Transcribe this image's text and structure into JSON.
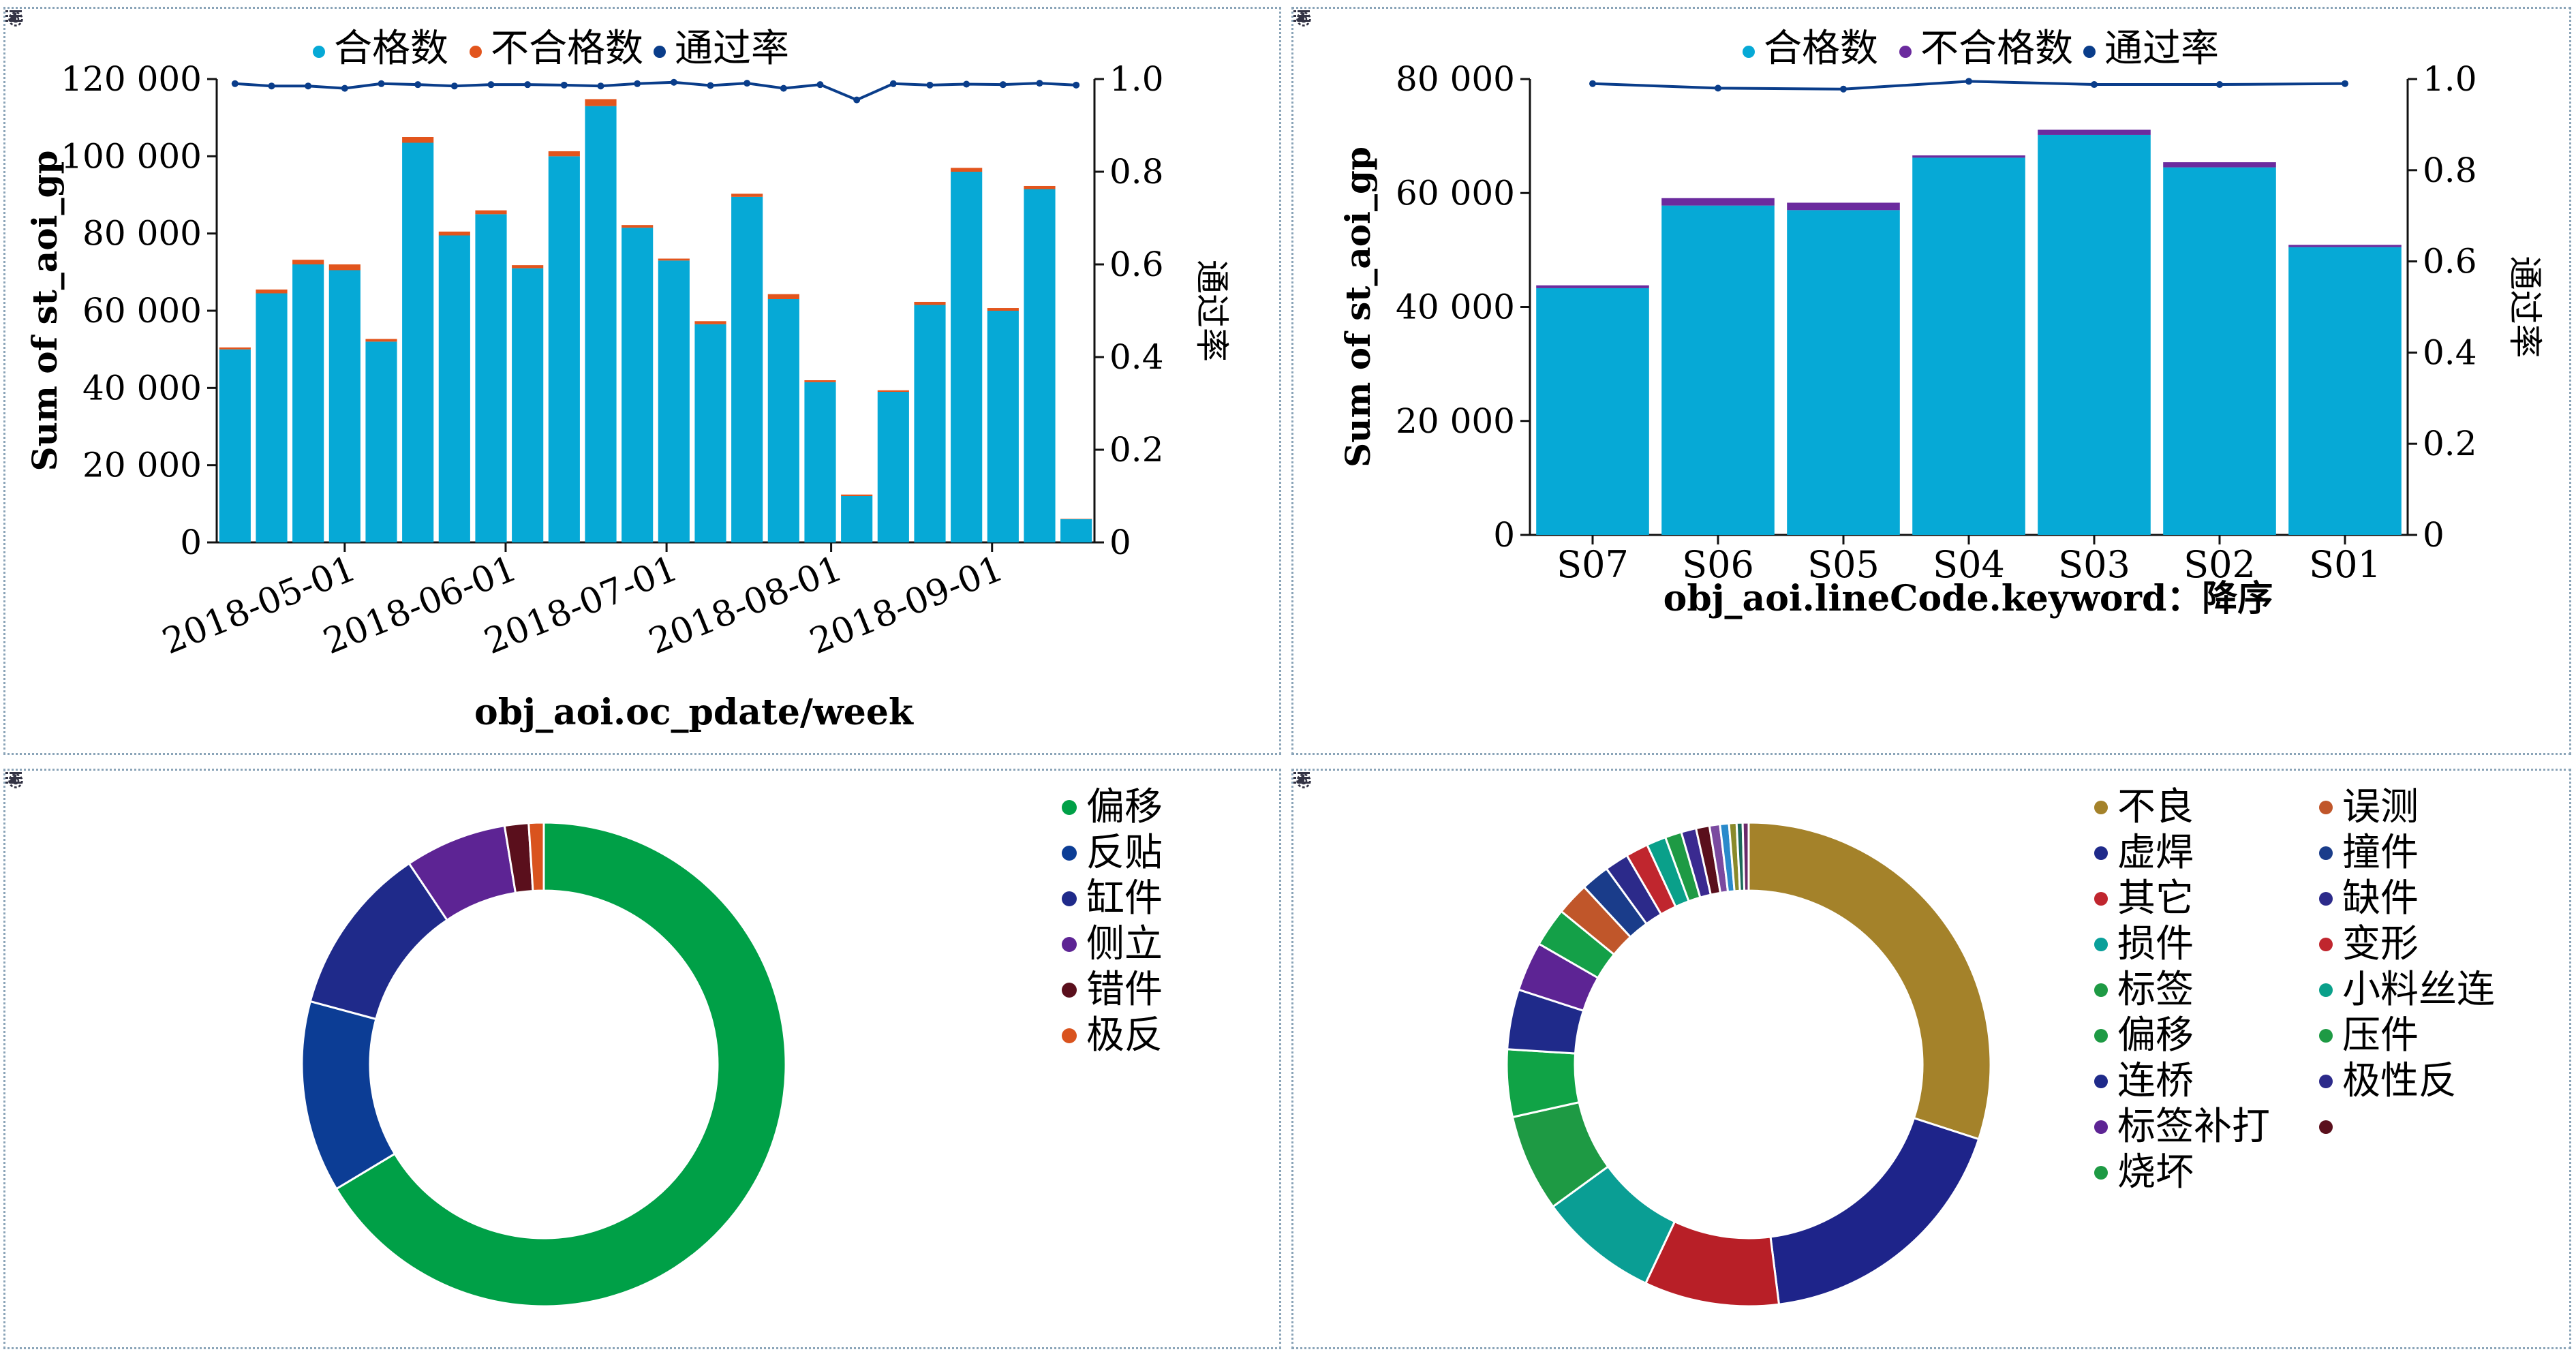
{
  "colors": {
    "pass": "#06a9d6",
    "fail_1": "#e2551d",
    "fail_2": "#6b2b9e",
    "rate": "#0a3d8a",
    "axis": "#111111"
  },
  "icons": {
    "settings": "gear-icon",
    "menu": "list-menu-icon",
    "resize": "resize-corner-icon"
  },
  "chart_data": [
    {
      "type": "bar",
      "stacked": true,
      "legend": {
        "position": "top",
        "entries": [
          "合格数",
          "不合格数",
          "通过率"
        ]
      },
      "xlabel": "obj_aoi.oc_pdate/week",
      "ylabel": "Sum of st_aoi_gp",
      "y2label": "通过率",
      "ylim": [
        0,
        120000
      ],
      "y2lim": [
        0,
        1.0
      ],
      "yticks": [
        "0",
        "20 000",
        "40 000",
        "60 000",
        "80 000",
        "100 000",
        "120 000"
      ],
      "y2ticks": [
        "0",
        "0.2",
        "0.4",
        "0.6",
        "0.8",
        "1.0"
      ],
      "xticks": [
        {
          "label": "2018-05-01",
          "index": 3.5
        },
        {
          "label": "2018-06-01",
          "index": 7.9
        },
        {
          "label": "2018-07-01",
          "index": 12.3
        },
        {
          "label": "2018-08-01",
          "index": 16.8
        },
        {
          "label": "2018-09-01",
          "index": 21.2
        }
      ],
      "series": [
        {
          "name": "合格数",
          "values": [
            50000,
            64500,
            72000,
            70500,
            52000,
            103500,
            79500,
            85000,
            71000,
            100000,
            113000,
            81500,
            73000,
            56500,
            89500,
            63000,
            41500,
            12000,
            39000,
            61500,
            96000,
            60000,
            91500,
            6000
          ]
        },
        {
          "name": "不合格数",
          "values": [
            500,
            1000,
            1200,
            1500,
            700,
            1500,
            1000,
            1000,
            800,
            1300,
            1800,
            700,
            500,
            800,
            800,
            1300,
            500,
            400,
            400,
            800,
            1000,
            700,
            800,
            100
          ]
        },
        {
          "name": "通过率",
          "values": [
            0.99,
            0.985,
            0.985,
            0.98,
            0.99,
            0.988,
            0.985,
            0.988,
            0.988,
            0.987,
            0.985,
            0.99,
            0.993,
            0.986,
            0.991,
            0.98,
            0.988,
            0.955,
            0.99,
            0.987,
            0.989,
            0.988,
            0.991,
            0.987
          ]
        }
      ]
    },
    {
      "type": "bar",
      "stacked": true,
      "legend": {
        "position": "top",
        "entries": [
          "合格数",
          "不合格数",
          "通过率"
        ]
      },
      "xlabel": "obj_aoi.lineCode.keyword：降序",
      "ylabel": "Sum of st_aoi_gp",
      "y2label": "通过率",
      "ylim": [
        0,
        80000
      ],
      "y2lim": [
        0,
        1.0
      ],
      "yticks": [
        "0",
        "20 000",
        "40 000",
        "60 000",
        "80 000"
      ],
      "y2ticks": [
        "0",
        "0.2",
        "0.4",
        "0.6",
        "0.8",
        "1.0"
      ],
      "categories": [
        "S07",
        "S06",
        "S05",
        "S04",
        "S03",
        "S02",
        "S01"
      ],
      "series": [
        {
          "name": "合格数",
          "values": [
            43300,
            57800,
            57000,
            66200,
            70200,
            64500,
            50500
          ]
        },
        {
          "name": "不合格数",
          "values": [
            500,
            1300,
            1300,
            400,
            900,
            900,
            400
          ]
        },
        {
          "name": "通过率",
          "values": [
            0.99,
            0.98,
            0.978,
            0.995,
            0.988,
            0.988,
            0.99
          ]
        }
      ]
    },
    {
      "type": "pie",
      "donut": true,
      "legend": {
        "position": "top-right",
        "entries": [
          "偏移",
          "反贴",
          "缸件",
          "侧立",
          "错件",
          "极反"
        ]
      },
      "slices": [
        {
          "label": "偏移",
          "value": 66.4,
          "color": "#00a047"
        },
        {
          "label": "反贴",
          "value": 12.8,
          "color": "#0c3d95"
        },
        {
          "label": "缸件",
          "value": 11.4,
          "color": "#1f2a8a"
        },
        {
          "label": "侧立",
          "value": 6.8,
          "color": "#5d2494"
        },
        {
          "label": "错件",
          "value": 1.6,
          "color": "#5a0f1c"
        },
        {
          "label": "极反",
          "value": 1.0,
          "color": "#d9531e"
        }
      ]
    },
    {
      "type": "pie",
      "donut": true,
      "legend": {
        "position": "top-right",
        "columns": 2,
        "entries": [
          "不良",
          "误测",
          "虚焊",
          "撞件",
          "其它",
          "缺件",
          "损件",
          "变形",
          "标签",
          "小料丝连",
          "偏移",
          "压件",
          "连桥",
          "极性反",
          "标签补打",
          "",
          "烧坏"
        ]
      },
      "legend_colors": [
        "#a4822a",
        "#c0562a",
        "#1f2a8a",
        "#1a3c8a",
        "#c0262e",
        "#2c2a8a",
        "#0aa09a",
        "#c0262e",
        "#1e9a44",
        "#0aa08a",
        "#1e9a44",
        "#1e9a44",
        "#1f2a8a",
        "#2c2a8a",
        "#5d2494",
        "#5a0f1c",
        "#1e9a44"
      ],
      "slices": [
        {
          "label": "不良",
          "value": 30.0,
          "color": "#a4822a"
        },
        {
          "label": "虚焊",
          "value": 18.0,
          "color": "#1e248a"
        },
        {
          "label": "其它",
          "value": 9.0,
          "color": "#b81f27"
        },
        {
          "label": "损件",
          "value": 8.0,
          "color": "#0a9e94"
        },
        {
          "label": "标签",
          "value": 6.5,
          "color": "#1e9a44"
        },
        {
          "label": "偏移",
          "value": 4.5,
          "color": "#10a346"
        },
        {
          "label": "连桥",
          "value": 4.0,
          "color": "#1f2a8a"
        },
        {
          "label": "标签补打",
          "value": 3.3,
          "color": "#5d2494"
        },
        {
          "label": "烧坏",
          "value": 2.6,
          "color": "#14a048"
        },
        {
          "label": "误测",
          "value": 2.2,
          "color": "#c0562a"
        },
        {
          "label": "撞件",
          "value": 1.9,
          "color": "#1a3c8a"
        },
        {
          "label": "缺件",
          "value": 1.6,
          "color": "#2c2a8a"
        },
        {
          "label": "变形",
          "value": 1.5,
          "color": "#c0262e"
        },
        {
          "label": "小料丝连",
          "value": 1.3,
          "color": "#0aa08a"
        },
        {
          "label": "压件",
          "value": 1.1,
          "color": "#1e9a44"
        },
        {
          "label": "极性反",
          "value": 1.0,
          "color": "#3a2a90"
        },
        {
          "label": "",
          "value": 0.9,
          "color": "#5a0f1c"
        },
        {
          "label": "",
          "value": 0.7,
          "color": "#7a4aa0"
        },
        {
          "label": "",
          "value": 0.6,
          "color": "#2a8acb"
        },
        {
          "label": "",
          "value": 0.5,
          "color": "#8a8a2a"
        },
        {
          "label": "",
          "value": 0.4,
          "color": "#1a6a5a"
        },
        {
          "label": "",
          "value": 0.4,
          "color": "#6a2a6a"
        }
      ]
    }
  ]
}
